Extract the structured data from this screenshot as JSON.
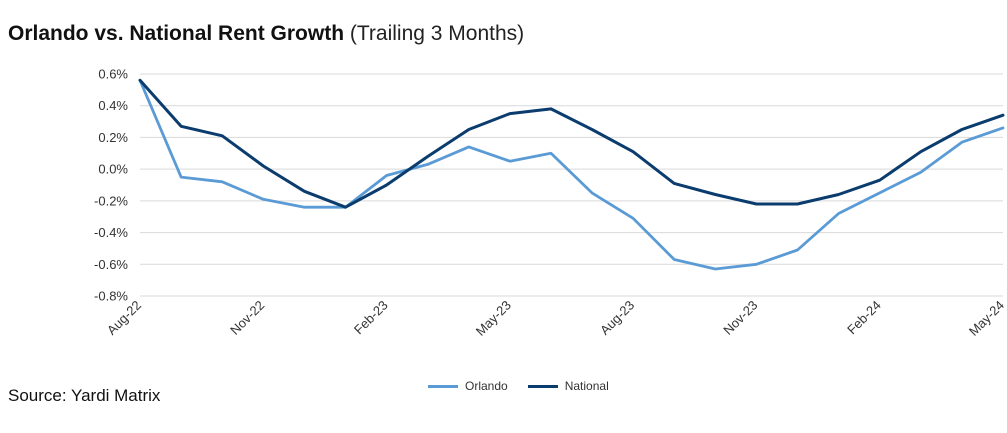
{
  "title": "Orlando vs. National Rent Growth",
  "subtitle": "(Trailing 3 Months)",
  "source": "Source: Yardi Matrix",
  "colors": {
    "Orlando": "#5b9bd5",
    "National": "#0b3c6e",
    "grid": "#d9d9d9"
  },
  "chart_data": {
    "type": "line",
    "title": "Orlando vs. National Rent Growth",
    "subtitle": "(Trailing 3 Months)",
    "xlabel": "",
    "ylabel": "",
    "ylim": [
      -0.8,
      0.6
    ],
    "yticks": [
      "0.6%",
      "0.4%",
      "0.2%",
      "0.0%",
      "-0.2%",
      "-0.4%",
      "-0.6%",
      "-0.8%"
    ],
    "ytick_values": [
      0.6,
      0.4,
      0.2,
      0.0,
      -0.2,
      -0.4,
      -0.6,
      -0.8
    ],
    "grid": true,
    "legend": "bottom-center",
    "x": [
      "Aug-22",
      "Sep-22",
      "Oct-22",
      "Nov-22",
      "Dec-22",
      "Jan-23",
      "Feb-23",
      "Mar-23",
      "Apr-23",
      "May-23",
      "Jun-23",
      "Jul-23",
      "Aug-23",
      "Sep-23",
      "Oct-23",
      "Nov-23",
      "Dec-23",
      "Jan-24",
      "Feb-24",
      "Mar-24",
      "Apr-24",
      "May-24"
    ],
    "xtick_labels": [
      "Aug-22",
      "Nov-22",
      "Feb-23",
      "May-23",
      "Aug-23",
      "Nov-23",
      "Feb-24",
      "May-24"
    ],
    "series": [
      {
        "name": "Orlando",
        "values": [
          0.56,
          -0.05,
          -0.08,
          -0.19,
          -0.24,
          -0.24,
          -0.04,
          0.03,
          0.14,
          0.05,
          0.1,
          -0.15,
          -0.31,
          -0.57,
          -0.63,
          -0.6,
          -0.51,
          -0.28,
          -0.15,
          -0.02,
          0.17,
          0.26
        ]
      },
      {
        "name": "National",
        "values": [
          0.56,
          0.27,
          0.21,
          0.02,
          -0.14,
          -0.24,
          -0.1,
          0.08,
          0.25,
          0.35,
          0.38,
          0.25,
          0.11,
          -0.09,
          -0.16,
          -0.22,
          -0.22,
          -0.16,
          -0.07,
          0.11,
          0.25,
          0.34
        ]
      }
    ]
  }
}
